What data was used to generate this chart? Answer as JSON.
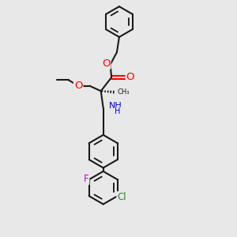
{
  "background_color": "#e8e8e8",
  "bond_color": "#1a1a1a",
  "bond_width": 1.5,
  "atom_colors": {
    "O": "#ff0000",
    "N": "#0000cc",
    "F": "#cc00cc",
    "Cl": "#228b22",
    "C": "#1a1a1a"
  },
  "font_size": 7.5,
  "fig_width": 3.0,
  "fig_height": 3.0,
  "dpi": 100,
  "xlim": [
    0,
    10
  ],
  "ylim": [
    0,
    10
  ]
}
